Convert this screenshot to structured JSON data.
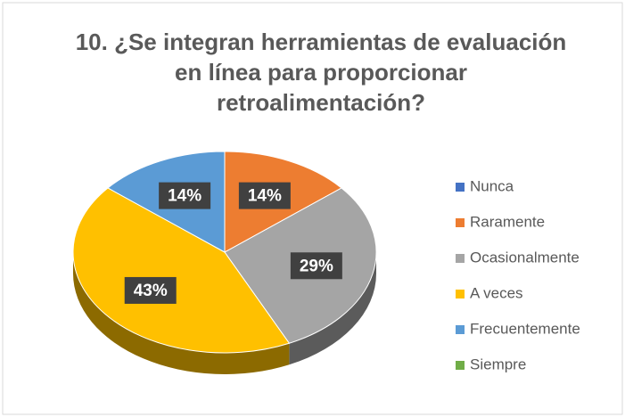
{
  "chart_data": {
    "type": "pie",
    "title": "10. ¿Se integran herramientas de evaluación en línea para proporcionar retroalimentación?",
    "categories": [
      "Nunca",
      "Raramente",
      "Ocasionalmente",
      "A veces",
      "Frecuentemente",
      "Siempre"
    ],
    "values": [
      0,
      14,
      29,
      43,
      14,
      0
    ],
    "value_labels": [
      null,
      "14%",
      "29%",
      "43%",
      "14%",
      null
    ],
    "colors": [
      "#4472c4",
      "#ed7d31",
      "#a5a5a5",
      "#ffc000",
      "#5b9bd5",
      "#70ad47"
    ],
    "legend": "right"
  }
}
